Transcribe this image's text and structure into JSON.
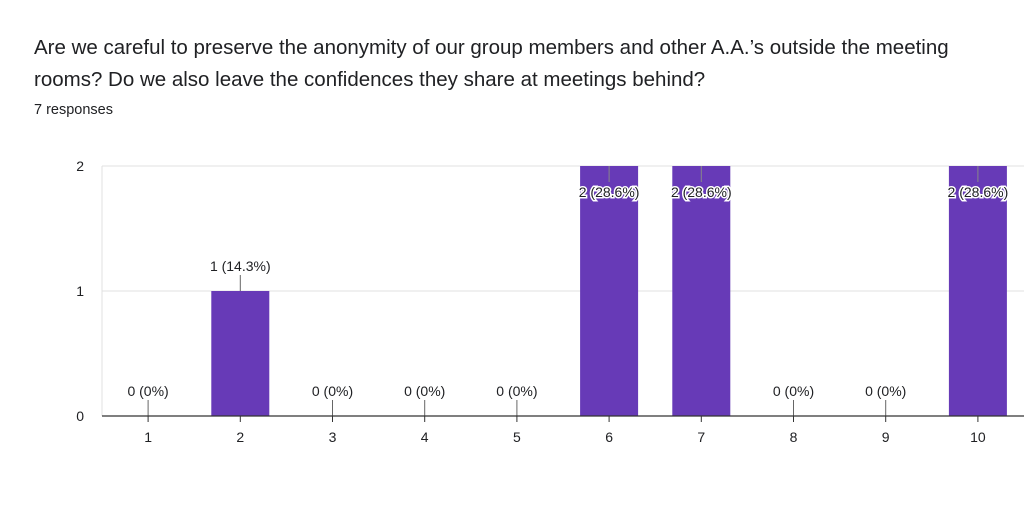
{
  "question": {
    "title": "Are we careful to preserve the anonymity of our group members and other A.A.’s outside the meeting rooms? Do we also leave the confidences they share at meetings behind?",
    "responses": "7 responses"
  },
  "colors": {
    "bar": "#673ab7",
    "grid": "#e0e0e0",
    "axis": "#333333",
    "text": "#202124"
  },
  "chart_data": {
    "type": "bar",
    "categories": [
      "1",
      "2",
      "3",
      "4",
      "5",
      "6",
      "7",
      "8",
      "9",
      "10"
    ],
    "values": [
      0,
      1,
      0,
      0,
      0,
      2,
      2,
      0,
      0,
      2
    ],
    "data_labels": [
      "0 (0%)",
      "1 (14.3%)",
      "0 (0%)",
      "0 (0%)",
      "0 (0%)",
      "2 (28.6%)",
      "2 (28.6%)",
      "0 (0%)",
      "0 (0%)",
      "2 (28.6%)"
    ],
    "y_ticks": [
      "0",
      "1",
      "2"
    ],
    "ylim": [
      0,
      2
    ],
    "grid": true,
    "title": "",
    "xlabel": "",
    "ylabel": ""
  }
}
